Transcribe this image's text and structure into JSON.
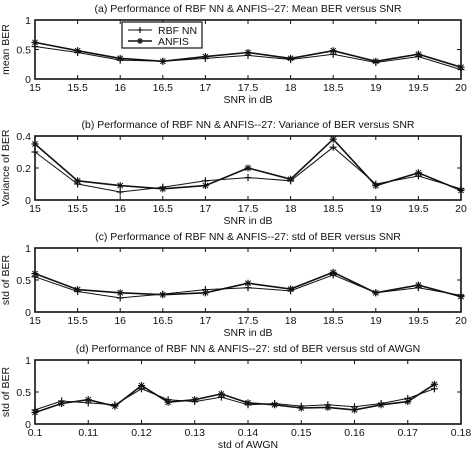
{
  "chart_data": [
    {
      "type": "line",
      "title": "(a) Performance of RBF NN & ANFIS--27: Mean BER versus SNR",
      "xlabel": "SNR in dB",
      "ylabel": "mean BER",
      "xlim": [
        15,
        20
      ],
      "ylim": [
        0,
        1
      ],
      "x_ticks": [
        "15",
        "15.5",
        "16",
        "16.5",
        "17",
        "17.5",
        "18",
        "18.5",
        "19",
        "19.5",
        "20"
      ],
      "y_ticks": [
        "0",
        "0.5",
        "1"
      ],
      "legend": "top-left",
      "x": [
        15,
        15.5,
        16,
        16.5,
        17,
        17.5,
        18,
        18.5,
        19,
        19.5,
        20
      ],
      "series": [
        {
          "name": "RBF NN",
          "marker": "+",
          "values": [
            0.55,
            0.45,
            0.32,
            0.3,
            0.35,
            0.4,
            0.33,
            0.42,
            0.28,
            0.38,
            0.16
          ]
        },
        {
          "name": "ANFIS",
          "marker": "*",
          "values": [
            0.62,
            0.48,
            0.35,
            0.3,
            0.38,
            0.45,
            0.35,
            0.48,
            0.3,
            0.42,
            0.2
          ]
        }
      ]
    },
    {
      "type": "line",
      "title": "(b) Performance of RBF NN & ANFIS--27: Variance of BER versus SNR",
      "xlabel": "SNR in dB",
      "ylabel": "Variance of BER",
      "xlim": [
        15,
        20
      ],
      "ylim": [
        0,
        0.4
      ],
      "x_ticks": [
        "15",
        "15.5",
        "16",
        "16.5",
        "17",
        "17.5",
        "18",
        "18.5",
        "19",
        "19.5",
        "20"
      ],
      "y_ticks": [
        "0",
        "0.2",
        "0.4"
      ],
      "x": [
        15,
        15.5,
        16,
        16.5,
        17,
        17.5,
        18,
        18.5,
        19,
        19.5,
        20
      ],
      "series": [
        {
          "marker": "+",
          "values": [
            0.3,
            0.1,
            0.05,
            0.08,
            0.12,
            0.14,
            0.12,
            0.33,
            0.1,
            0.15,
            0.07
          ]
        },
        {
          "marker": "*",
          "values": [
            0.35,
            0.12,
            0.09,
            0.07,
            0.09,
            0.2,
            0.13,
            0.38,
            0.09,
            0.17,
            0.06
          ]
        }
      ]
    },
    {
      "type": "line",
      "title": "(c) Performance of RBF NN & ANFIS--27: std of  BER versus SNR",
      "xlabel": "SNR in dB",
      "ylabel": "std of  BER",
      "xlim": [
        15,
        20
      ],
      "ylim": [
        0,
        1
      ],
      "x_ticks": [
        "15",
        "15.5",
        "16",
        "16.5",
        "17",
        "17.5",
        "18",
        "18.5",
        "19",
        "19.5",
        "20"
      ],
      "y_ticks": [
        "0",
        "0.5",
        "1"
      ],
      "x": [
        15,
        15.5,
        16,
        16.5,
        17,
        17.5,
        18,
        18.5,
        19,
        19.5,
        20
      ],
      "series": [
        {
          "marker": "+",
          "values": [
            0.55,
            0.32,
            0.22,
            0.28,
            0.35,
            0.38,
            0.33,
            0.58,
            0.3,
            0.38,
            0.26
          ]
        },
        {
          "marker": "*",
          "values": [
            0.6,
            0.35,
            0.3,
            0.27,
            0.3,
            0.45,
            0.36,
            0.62,
            0.3,
            0.42,
            0.24
          ]
        }
      ]
    },
    {
      "type": "line",
      "title": "(d) Performance of RBF NN & ANFIS--27: std of BER versus std of AWGN",
      "xlabel": "std of AWGN",
      "ylabel": "std of BER",
      "xlim": [
        0.1,
        0.18
      ],
      "ylim": [
        0,
        1
      ],
      "x_ticks": [
        "0.1",
        "0.11",
        "0.12",
        "0.13",
        "0.14",
        "0.15",
        "0.16",
        "0.17",
        "0.18"
      ],
      "y_ticks": [
        "0",
        "0.5",
        "1"
      ],
      "x": [
        0.1,
        0.105,
        0.11,
        0.115,
        0.12,
        0.125,
        0.13,
        0.135,
        0.14,
        0.145,
        0.15,
        0.155,
        0.16,
        0.165,
        0.17,
        0.175
      ],
      "series": [
        {
          "marker": "+",
          "values": [
            0.22,
            0.36,
            0.33,
            0.3,
            0.55,
            0.38,
            0.35,
            0.42,
            0.3,
            0.32,
            0.28,
            0.3,
            0.27,
            0.32,
            0.4,
            0.55
          ]
        },
        {
          "marker": "*",
          "values": [
            0.18,
            0.32,
            0.38,
            0.28,
            0.6,
            0.34,
            0.38,
            0.47,
            0.33,
            0.3,
            0.25,
            0.26,
            0.22,
            0.3,
            0.35,
            0.62
          ]
        }
      ]
    }
  ]
}
